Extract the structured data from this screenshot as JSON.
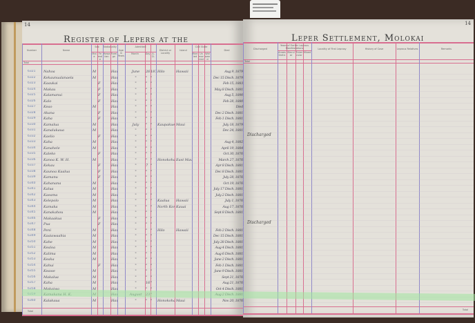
{
  "left_page": {
    "page_number": "14",
    "title": "Register of Lepers at the",
    "headers": {
      "number": "Number",
      "name": "Name",
      "sex": "Sex",
      "sex_male": "Male",
      "sex_female": "Female",
      "nationality": "Nationality",
      "nat_hawaiian": "Hawaiian",
      "nat_foreign": "Foreign",
      "age": "Age in Years",
      "admitted": "Admitted",
      "adm_month": "Month",
      "adm_day": "Day",
      "adm_year": "A.D.",
      "district": "District or Locality",
      "island": "Island",
      "civil_state": "Civil State",
      "civil_married": "Married",
      "civil_unmarried": "Unmarried",
      "civil_widowed": "Widowed",
      "died": "Died"
    },
    "total_label_top": "Total",
    "total_label_bottom": "Total",
    "rows": [
      {
        "number": "6321",
        "name": "Nahoa",
        "sex": "M",
        "nat": "Haw",
        "month": "June",
        "day": "26",
        "year": "1879",
        "district": "Hilo",
        "island": "Hawaii",
        "died": "Aug 9, 1879"
      },
      {
        "number": "6322",
        "name": "Kekaunualanaela",
        "sex": "M",
        "nat": "Haw",
        "month": "\"",
        "day": "\"",
        "year": "\"",
        "district": "",
        "island": "",
        "died": "Dec 15 Disch. 1879"
      },
      {
        "number": "6323",
        "name": "Kaaukai",
        "sex": "F",
        "nat": "Haw",
        "month": "\"",
        "day": "\"",
        "year": "\"",
        "district": "",
        "island": "",
        "died": "Feb 15, 1883"
      },
      {
        "number": "6324",
        "name": "Makau",
        "sex": "F",
        "nat": "Haw",
        "month": "\"",
        "day": "\"",
        "year": "\"",
        "district": "",
        "island": "",
        "died": "May 8 Disch. 1881"
      },
      {
        "number": "6325",
        "name": "Kalamanui",
        "sex": "F",
        "nat": "Haw",
        "month": "\"",
        "day": "\"",
        "year": "\"",
        "district": "",
        "island": "",
        "died": "Aug 5, 1890"
      },
      {
        "number": "6326",
        "name": "Kalo",
        "sex": "F",
        "nat": "Haw",
        "month": "\"",
        "day": "\"",
        "year": "\"",
        "district": "",
        "island": "",
        "died": "Feb 28, 1880"
      },
      {
        "number": "6327",
        "name": "Keao",
        "sex": "M",
        "nat": "Haw",
        "month": "\"",
        "day": "\"",
        "year": "\"",
        "district": "",
        "island": "",
        "died": "Died"
      },
      {
        "number": "6328",
        "name": "Akana",
        "sex": "F",
        "nat": "Haw",
        "month": "\"",
        "day": "\"",
        "year": "\"",
        "district": "",
        "island": "",
        "died": "Dec 2 Disch. 1881"
      },
      {
        "number": "6329",
        "name": "Kaha",
        "sex": "F",
        "nat": "Haw",
        "month": "\"",
        "day": "\"",
        "year": "\"",
        "district": "",
        "island": "",
        "died": "Feb 1 Disch. 1881"
      },
      {
        "number": "6330",
        "name": "Kamalua",
        "sex": "M",
        "nat": "Haw",
        "month": "July",
        "day": "\"",
        "year": "\"",
        "district": "Kaupakuea",
        "island": "Maui",
        "died": "July 18, 1879"
      },
      {
        "number": "6331",
        "name": "Kanalukaua",
        "sex": "M",
        "nat": "Haw",
        "month": "\"",
        "day": "\"",
        "year": "\"",
        "district": "",
        "island": "",
        "died": "Dec 24, 1881"
      },
      {
        "number": "6332",
        "name": "Kaelio",
        "sex": "F",
        "nat": "Haw",
        "month": "\"",
        "day": "\"",
        "year": "\"",
        "district": "",
        "island": "",
        "died": ""
      },
      {
        "number": "6333",
        "name": "Kaha",
        "sex": "M",
        "nat": "Haw",
        "month": "\"",
        "day": "\"",
        "year": "\"",
        "district": "",
        "island": "",
        "died": "Aug 4, 1882"
      },
      {
        "number": "6334",
        "name": "Kanahele",
        "sex": "M",
        "nat": "Haw",
        "month": "\"",
        "day": "\"",
        "year": "\"",
        "district": "",
        "island": "",
        "died": "April 19, 1884"
      },
      {
        "number": "6335",
        "name": "Kaleko",
        "sex": "F",
        "nat": "Haw",
        "month": "\"",
        "day": "\"",
        "year": "\"",
        "district": "",
        "island": "",
        "died": "Oct 30, 1876"
      },
      {
        "number": "6336",
        "name": "Kanoa K. W. H.",
        "sex": "M",
        "nat": "Haw",
        "month": "\"",
        "day": "\"",
        "year": "\"",
        "district": "Honokohau",
        "island": "East Maui",
        "died": "March 27, 1876"
      },
      {
        "number": "6337",
        "name": "Kekau",
        "sex": "F",
        "nat": "Haw",
        "month": "\"",
        "day": "7",
        "year": "\"",
        "district": "",
        "island": "",
        "died": "Apr 8 Disch. 1881"
      },
      {
        "number": "6338",
        "name": "Kaunoa Kaalua",
        "sex": "F",
        "nat": "Haw",
        "month": "\"",
        "day": "\"",
        "year": "\"",
        "district": "",
        "island": "",
        "died": "Dec 8 Disch. 1881"
      },
      {
        "number": "6339",
        "name": "Kamanu",
        "sex": "F",
        "nat": "Haw",
        "month": "\"",
        "day": "\"",
        "year": "\"",
        "district": "",
        "island": "",
        "died": "July 28, 1876"
      },
      {
        "number": "6340",
        "name": "Kahanana",
        "sex": "M",
        "nat": "Haw",
        "month": "\"",
        "day": "\"",
        "year": "\"",
        "district": "",
        "island": "",
        "died": "Oct 19, 1876"
      },
      {
        "number": "6341",
        "name": "Kalua",
        "sex": "M",
        "nat": "Haw",
        "month": "\"",
        "day": "\"",
        "year": "\"",
        "district": "",
        "island": "",
        "died": "July 17 Disch. 1881"
      },
      {
        "number": "6342",
        "name": "Kaeama",
        "sex": "M",
        "nat": "Haw",
        "month": "\"",
        "day": "\"",
        "year": "\"",
        "district": "",
        "island": "",
        "died": "July 2 Disch. 1881"
      },
      {
        "number": "6343",
        "name": "Kelepolo",
        "sex": "M",
        "nat": "Haw",
        "month": "\"",
        "day": "\"",
        "year": "\"",
        "district": "Kaalua",
        "island": "Hawaii",
        "died": "July 1, 1876"
      },
      {
        "number": "6344",
        "name": "Kamaka",
        "sex": "M",
        "nat": "Haw",
        "month": "\"",
        "day": "\"",
        "year": "\"",
        "district": "North Kona",
        "island": "Kauai",
        "died": "Aug 17, 1876"
      },
      {
        "number": "6345",
        "name": "Kanakahou",
        "sex": "M",
        "nat": "Haw",
        "month": "\"",
        "day": "\"",
        "year": "\"",
        "district": "",
        "island": "",
        "died": "Sept 8 Disch. 1881"
      },
      {
        "number": "6346",
        "name": "Makaakua",
        "sex": "F",
        "nat": "Haw",
        "month": "\"",
        "day": "\"",
        "year": "\"",
        "district": "",
        "island": "",
        "died": ""
      },
      {
        "number": "6347",
        "name": "Pua",
        "sex": "F",
        "nat": "Haw",
        "month": "\"",
        "day": "\"",
        "year": "\"",
        "district": "",
        "island": "",
        "died": ""
      },
      {
        "number": "6348",
        "name": "Peni",
        "sex": "M",
        "nat": "Haw",
        "month": "\"",
        "day": "\"",
        "year": "\"",
        "district": "Hilo",
        "island": "Hawaii",
        "died": "Feb 2 Disch. 1881"
      },
      {
        "number": "6349",
        "name": "Kaaiawaahia",
        "sex": "M",
        "nat": "Haw",
        "month": "\"",
        "day": "\"",
        "year": "\"",
        "district": "",
        "island": "",
        "died": "Dec 15 Disch. 1881"
      },
      {
        "number": "6350",
        "name": "Kahe",
        "sex": "M",
        "nat": "Haw",
        "month": "\"",
        "day": "\"",
        "year": "\"",
        "district": "",
        "island": "",
        "died": "July 28 Disch. 1881"
      },
      {
        "number": "6351",
        "name": "Kealoa",
        "sex": "M",
        "nat": "Haw",
        "month": "\"",
        "day": "\"",
        "year": "\"",
        "district": "",
        "island": "",
        "died": "Aug 4 Disch. 1881"
      },
      {
        "number": "6352",
        "name": "Kalima",
        "sex": "M",
        "nat": "Haw",
        "month": "\"",
        "day": "\"",
        "year": "\"",
        "district": "",
        "island": "",
        "died": "Aug 6 Disch. 1881"
      },
      {
        "number": "6353",
        "name": "Keaka",
        "sex": "M",
        "nat": "Haw",
        "month": "\"",
        "day": "\"",
        "year": "\"",
        "district": "",
        "island": "",
        "died": "June 2 Disch. 1881"
      },
      {
        "number": "6354",
        "name": "Kahui",
        "sex": "F",
        "nat": "Haw",
        "month": "\"",
        "day": "\"",
        "year": "\"",
        "district": "",
        "island": "",
        "died": "Feb 1 Disch. 1881"
      },
      {
        "number": "6355",
        "name": "Keawe",
        "sex": "M",
        "nat": "Haw",
        "month": "\"",
        "day": "\"",
        "year": "\"",
        "district": "",
        "island": "",
        "died": "June 9 Disch. 1881"
      },
      {
        "number": "6356",
        "name": "Makalua",
        "sex": "M",
        "nat": "Haw",
        "month": "\"",
        "day": "\"",
        "year": "\"",
        "district": "",
        "island": "",
        "died": "Sept 21, 1876"
      },
      {
        "number": "6357",
        "name": "Kaha",
        "sex": "M",
        "nat": "Haw",
        "month": "\"",
        "day": "16",
        "year": "\"",
        "district": "",
        "island": "",
        "died": "Aug 21, 1876"
      },
      {
        "number": "6358",
        "name": "Makaiwa",
        "sex": "M",
        "nat": "Haw",
        "month": "\"",
        "day": "\"",
        "year": "\"",
        "district": "",
        "island": "",
        "died": "Oct 4 Disch. 1881"
      },
      {
        "number": "6359",
        "name": "Kamakana H. K.",
        "sex": "M",
        "nat": "Haw",
        "month": "August",
        "day": "23",
        "year": "\"",
        "district": "",
        "island": "",
        "died": "Aug 2 Disch. 1881"
      },
      {
        "number": "6360",
        "name": "Kalakaua",
        "sex": "M",
        "nat": "Haw",
        "month": "\"",
        "day": "\"",
        "year": "\"",
        "district": "Honokohau",
        "island": "Maui",
        "died": "Nov 20, 1876"
      }
    ]
  },
  "right_page": {
    "page_number": "14",
    "title": "Leper Settlement, Molokai",
    "headers": {
      "discharged": "Discharged",
      "years_group": "Years of Earlier Leprous Manifestations",
      "yr_1": "Anaesthetic",
      "yr_2": "Macular",
      "yr_3": "Tubercular",
      "yr_4": "Mixed",
      "locality": "Locality of First Leprosy",
      "history": "History of Case",
      "relatives": "Leprous Relatives",
      "remarks": "Remarks"
    },
    "total_label_top": "Total",
    "total_label_bottom": "Total",
    "notes": [
      {
        "row": 11,
        "text": "Discharged"
      },
      {
        "row": 26,
        "text": "Discharged"
      }
    ]
  },
  "colors": {
    "paper": "#e4e1da",
    "pink_rule": "#d86d8f",
    "blue_rule": "#8f88c8",
    "ink": "#4a4a5a",
    "highlight": "#a0e6a0",
    "background": "#3b2b24"
  }
}
